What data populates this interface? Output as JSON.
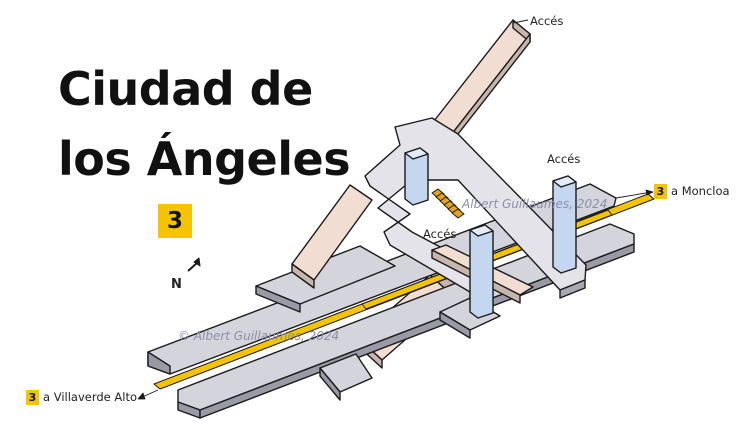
{
  "title": {
    "line1": "Ciudad de",
    "line2": "los Ángeles"
  },
  "line_number": "3",
  "destinations": {
    "moncloa": {
      "line": "3",
      "label": "a Moncloa"
    },
    "villaverde": {
      "line": "3",
      "label": "a Villaverde Alto"
    }
  },
  "access_labels": [
    "Accés",
    "Accés",
    "Accés"
  ],
  "north_label": "N",
  "watermarks": [
    "Albert Guillaumes, 2024",
    "© Albert Guillaumes, 2024"
  ],
  "colors": {
    "line_yellow": "#f4c400",
    "platform_grey": "#d4d4dc",
    "hall_light": "#e3e3e9",
    "passage_tan": "#f1ddd1",
    "elevator_blue": "#c5d6f0",
    "escalator_orange": "#e4a21f"
  }
}
